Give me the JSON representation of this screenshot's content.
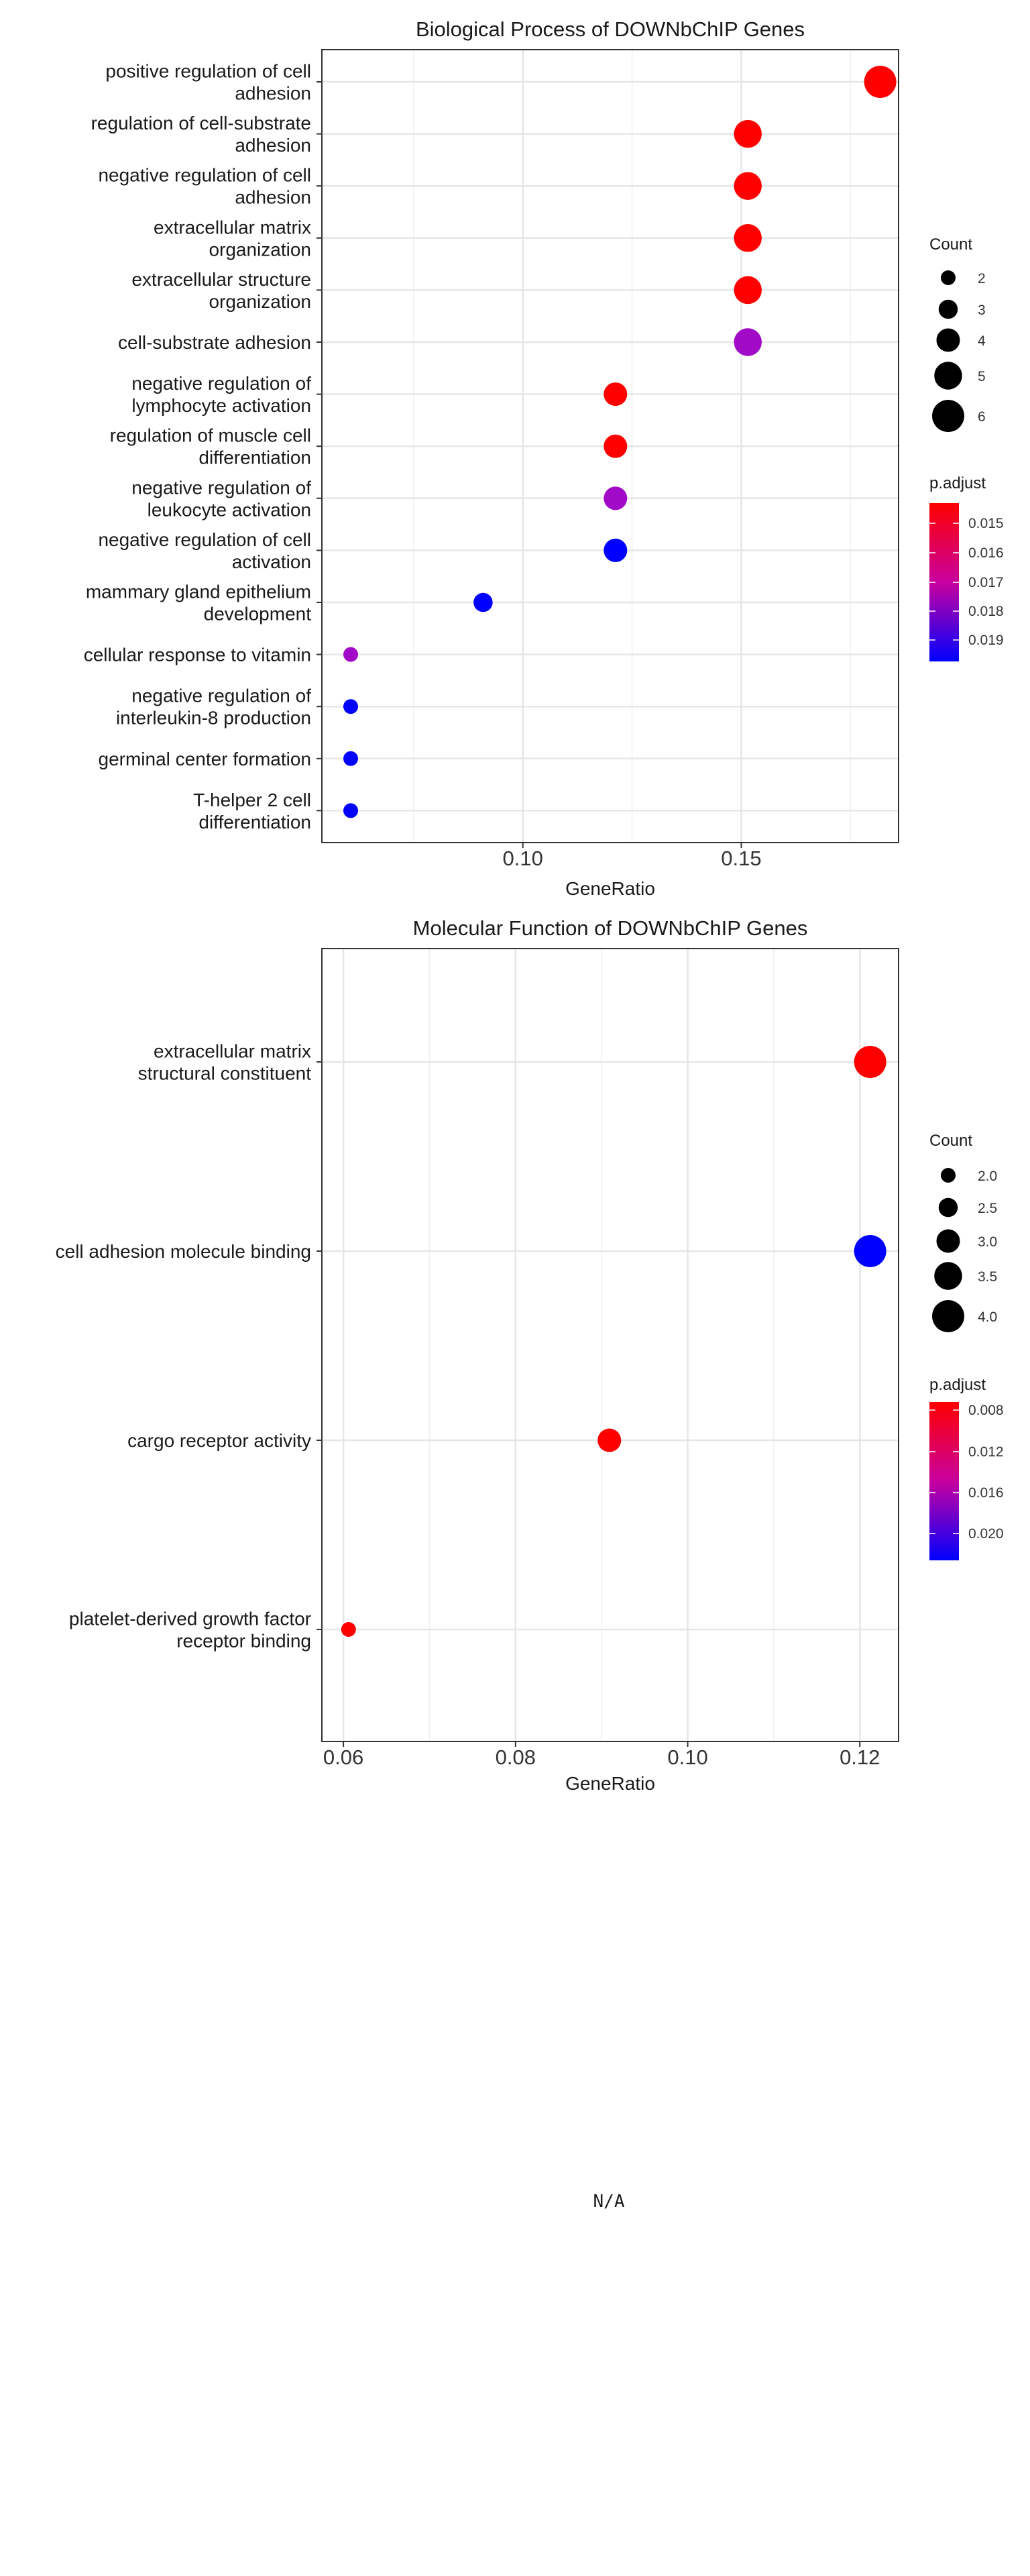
{
  "chart_data": [
    {
      "type": "scatter",
      "title": "Biological Process of DOWNbChIP Genes",
      "xlabel": "GeneRatio",
      "ylabel": "",
      "xlim": [
        0.054,
        0.186
      ],
      "x_ticks": [
        0.1,
        0.15
      ],
      "x_tick_labels": [
        "0.10",
        "0.15"
      ],
      "grid": true,
      "legend_position": "right",
      "points": [
        {
          "label": [
            "positive regulation of cell",
            "adhesion"
          ],
          "x": 0.1818,
          "count": 6,
          "p_adjust": 0.0145,
          "color": "#ff0000"
        },
        {
          "label": [
            "regulation of cell-substrate",
            "adhesion"
          ],
          "x": 0.1515,
          "count": 5,
          "p_adjust": 0.0145,
          "color": "#ff0000"
        },
        {
          "label": [
            "negative regulation of cell",
            "adhesion"
          ],
          "x": 0.1515,
          "count": 5,
          "p_adjust": 0.0145,
          "color": "#ff0000"
        },
        {
          "label": [
            "extracellular matrix",
            "organization"
          ],
          "x": 0.1515,
          "count": 5,
          "p_adjust": 0.0145,
          "color": "#ff0000"
        },
        {
          "label": [
            "extracellular structure",
            "organization"
          ],
          "x": 0.1515,
          "count": 5,
          "p_adjust": 0.0145,
          "color": "#ff0000"
        },
        {
          "label": [
            "cell-substrate adhesion"
          ],
          "x": 0.1515,
          "count": 5,
          "p_adjust": 0.0175,
          "color": "#a10bc8"
        },
        {
          "label": [
            "negative regulation of",
            "lymphocyte activation"
          ],
          "x": 0.1212,
          "count": 4,
          "p_adjust": 0.0145,
          "color": "#ff0000"
        },
        {
          "label": [
            "regulation of muscle cell",
            "differentiation"
          ],
          "x": 0.1212,
          "count": 4,
          "p_adjust": 0.0145,
          "color": "#ff0000"
        },
        {
          "label": [
            "negative regulation of",
            "leukocyte activation"
          ],
          "x": 0.1212,
          "count": 4,
          "p_adjust": 0.0176,
          "color": "#a10bc8"
        },
        {
          "label": [
            "negative regulation of cell",
            "activation"
          ],
          "x": 0.1212,
          "count": 4,
          "p_adjust": 0.0196,
          "color": "#0000ff"
        },
        {
          "label": [
            "mammary gland epithelium",
            "development"
          ],
          "x": 0.0909,
          "count": 3,
          "p_adjust": 0.0196,
          "color": "#0000ff"
        },
        {
          "label": [
            "cellular response to vitamin"
          ],
          "x": 0.0606,
          "count": 2,
          "p_adjust": 0.0176,
          "color": "#a10bc8"
        },
        {
          "label": [
            "negative regulation of",
            "interleukin-8 production"
          ],
          "x": 0.0606,
          "count": 2,
          "p_adjust": 0.0196,
          "color": "#0000ff"
        },
        {
          "label": [
            "germinal center formation"
          ],
          "x": 0.0606,
          "count": 2,
          "p_adjust": 0.0196,
          "color": "#0000ff"
        },
        {
          "label": [
            "T-helper 2 cell",
            "differentiation"
          ],
          "x": 0.0606,
          "count": 2,
          "p_adjust": 0.0196,
          "color": "#0000ff"
        }
      ],
      "size_legend": {
        "title": "Count",
        "values": [
          2,
          3,
          4,
          5,
          6
        ],
        "labels": [
          "2",
          "3",
          "4",
          "5",
          "6"
        ]
      },
      "color_legend": {
        "title": "p.adjust",
        "ticks": [
          0.015,
          0.016,
          0.017,
          0.018,
          0.019
        ],
        "labels": [
          "0.015",
          "0.016",
          "0.017",
          "0.018",
          "0.019"
        ],
        "range": [
          0.0145,
          0.0196
        ],
        "low_color": "#ff0000",
        "high_color": "#0000ff"
      }
    },
    {
      "type": "scatter",
      "title": "Molecular Function of DOWNbChIP Genes",
      "xlabel": "GeneRatio",
      "ylabel": "",
      "xlim": [
        0.0575,
        0.1245
      ],
      "x_ticks": [
        0.06,
        0.08,
        0.1,
        0.12
      ],
      "x_tick_labels": [
        "0.06",
        "0.08",
        "0.10",
        "0.12"
      ],
      "grid": true,
      "legend_position": "right",
      "points": [
        {
          "label": [
            "extracellular matrix",
            "structural constituent"
          ],
          "x": 0.1212,
          "count": 4,
          "p_adjust": 0.0075,
          "color": "#ff0000"
        },
        {
          "label": [
            "cell adhesion molecule binding"
          ],
          "x": 0.1212,
          "count": 4,
          "p_adjust": 0.0235,
          "color": "#0000ff"
        },
        {
          "label": [
            "cargo receptor activity"
          ],
          "x": 0.0909,
          "count": 3,
          "p_adjust": 0.0075,
          "color": "#ff0000"
        },
        {
          "label": [
            "platelet-derived growth factor",
            "receptor binding"
          ],
          "x": 0.0606,
          "count": 2,
          "p_adjust": 0.0075,
          "color": "#ff0000"
        }
      ],
      "size_legend": {
        "title": "Count",
        "values": [
          2.0,
          2.5,
          3.0,
          3.5,
          4.0
        ],
        "labels": [
          "2.0",
          "2.5",
          "3.0",
          "3.5",
          "4.0"
        ]
      },
      "color_legend": {
        "title": "p.adjust",
        "ticks": [
          0.008,
          0.012,
          0.016,
          0.02
        ],
        "labels": [
          "0.008",
          "0.012",
          "0.016",
          "0.020"
        ],
        "range": [
          0.0075,
          0.0235
        ],
        "low_color": "#ff0000",
        "high_color": "#0000ff"
      }
    }
  ],
  "na_panel": {
    "text": "N/A"
  }
}
